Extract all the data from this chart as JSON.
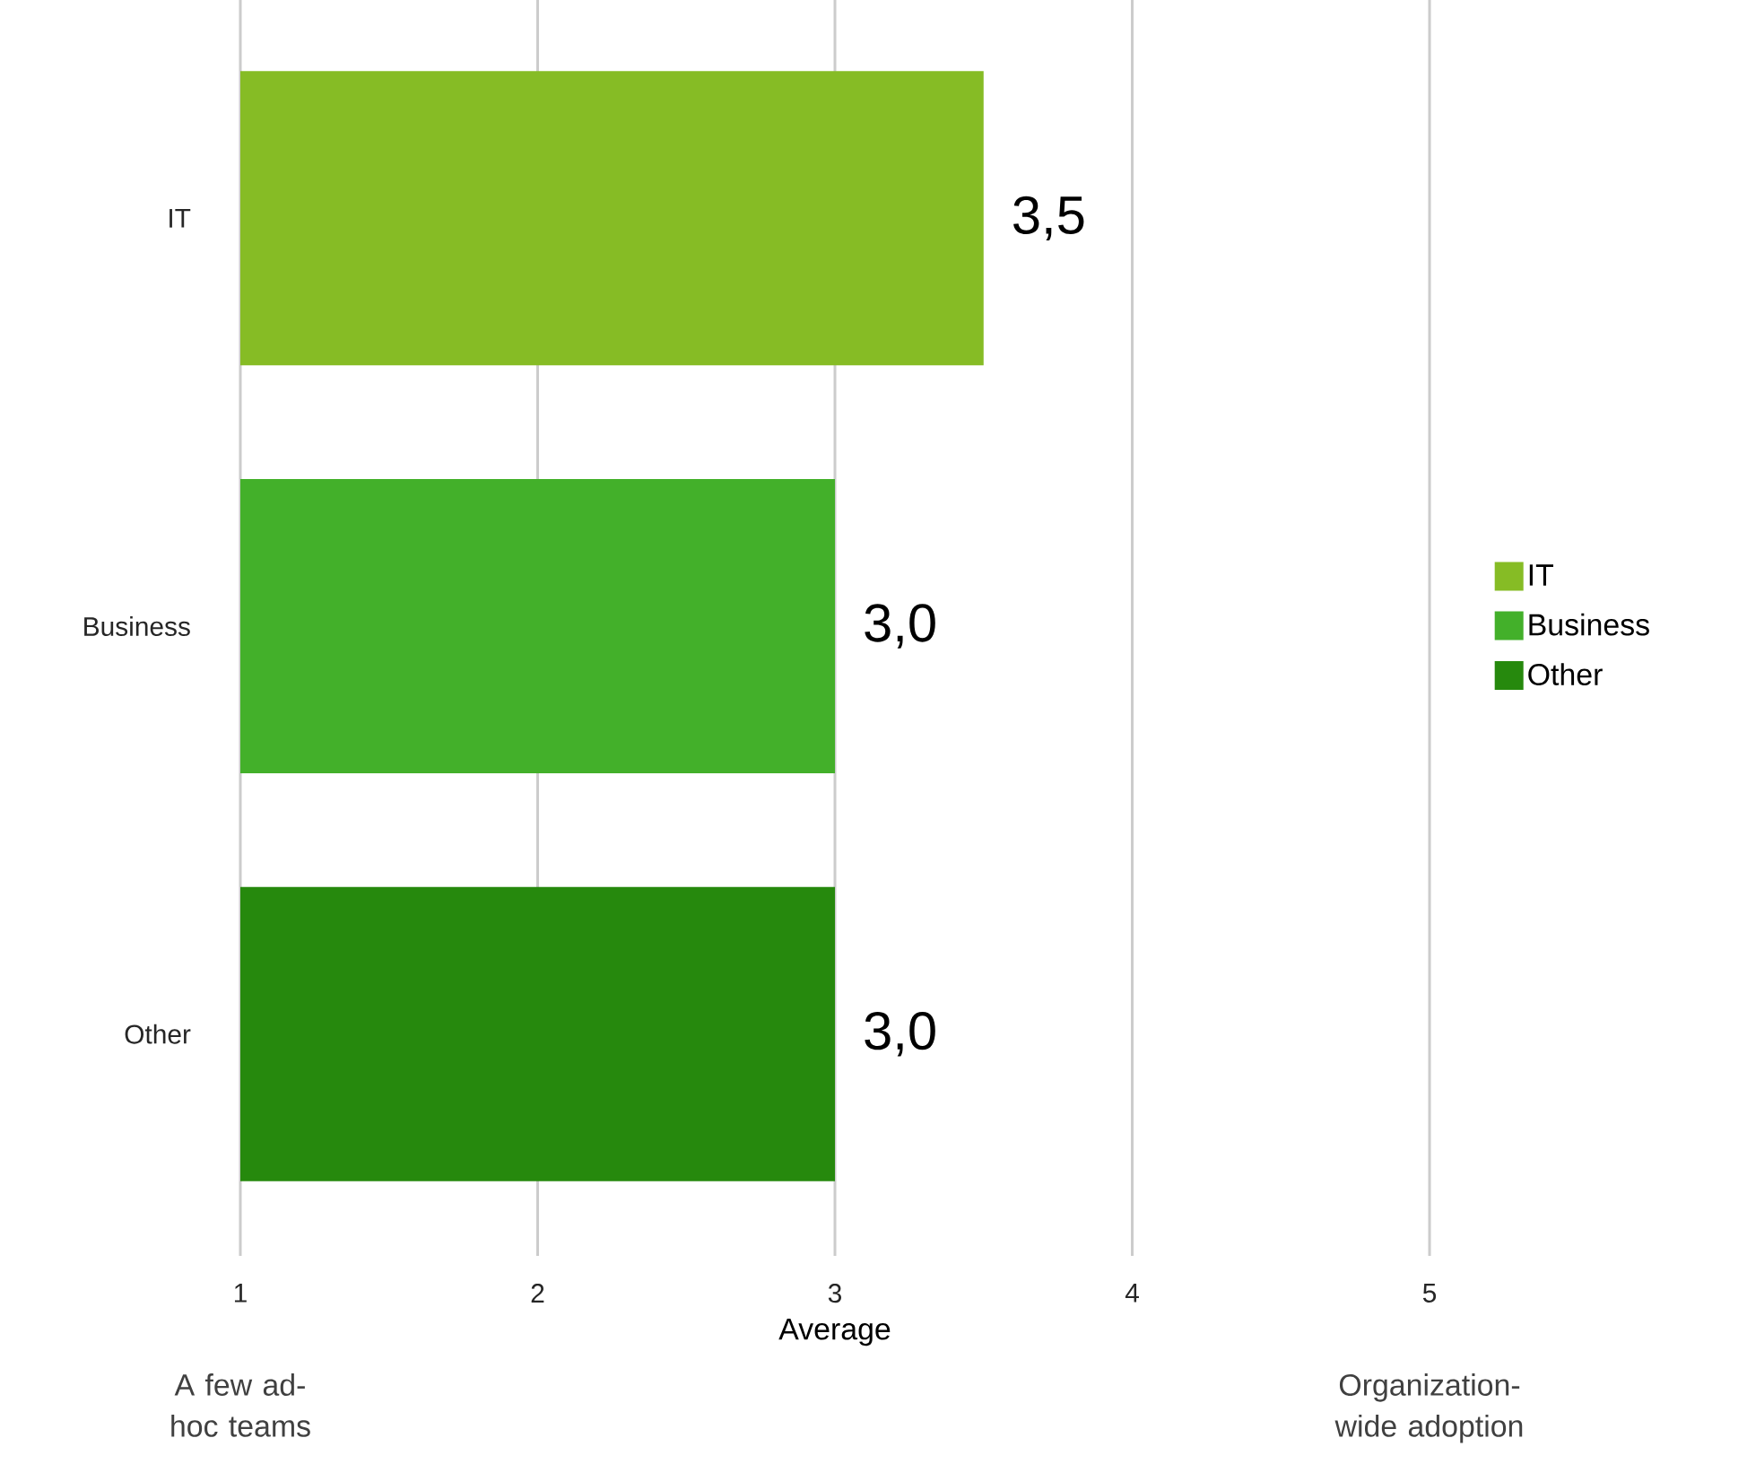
{
  "chart_data": {
    "type": "bar",
    "orientation": "horizontal",
    "categories": [
      "IT",
      "Business",
      "Other"
    ],
    "series": [
      {
        "name": "IT",
        "color": "#86bc25",
        "values": [
          3.5,
          null,
          null
        ],
        "value_labels": [
          "3,5",
          null,
          null
        ]
      },
      {
        "name": "Business",
        "color": "#43b02a",
        "values": [
          null,
          3.0,
          null
        ],
        "value_labels": [
          null,
          "3,0",
          null
        ]
      },
      {
        "name": "Other",
        "color": "#26890d",
        "values": [
          null,
          null,
          3.0
        ],
        "value_labels": [
          null,
          null,
          "3,0"
        ]
      }
    ],
    "xlim": [
      1,
      5
    ],
    "xticks": [
      1,
      2,
      3,
      4,
      5
    ],
    "xlabel": "Average",
    "annotations": [
      "A few ad-hoc teams",
      "Organization-wide adoption"
    ],
    "grid": "x",
    "legend": "right"
  }
}
